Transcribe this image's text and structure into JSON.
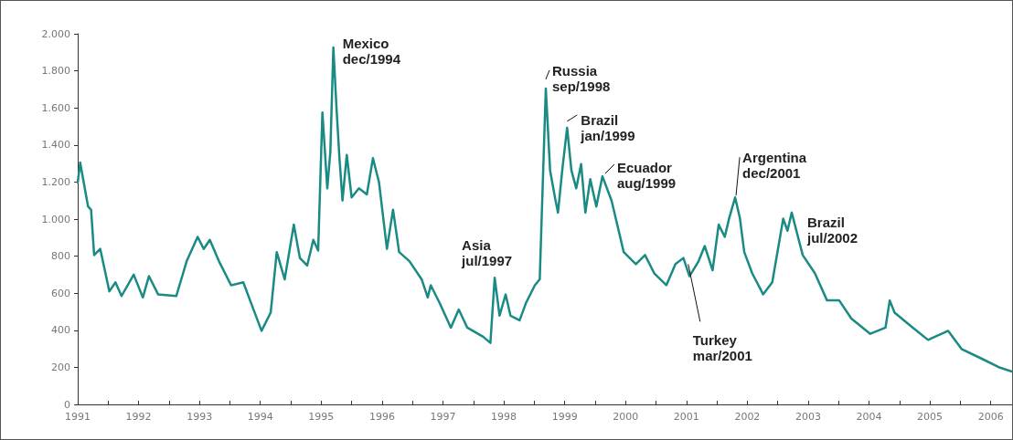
{
  "chart_data": {
    "type": "line",
    "x": [
      1991.0,
      1991.04,
      1991.17,
      1991.22,
      1991.27,
      1991.37,
      1991.52,
      1991.62,
      1991.72,
      1991.92,
      1992.07,
      1992.17,
      1992.32,
      1992.62,
      1992.79,
      1992.97,
      1993.07,
      1993.17,
      1993.32,
      1993.52,
      1993.72,
      1993.87,
      1994.02,
      1994.17,
      1994.27,
      1994.4,
      1994.55,
      1994.65,
      1994.77,
      1994.87,
      1994.95,
      1995.02,
      1995.1,
      1995.15,
      1995.2,
      1995.25,
      1995.3,
      1995.35,
      1995.42,
      1995.5,
      1995.62,
      1995.75,
      1995.85,
      1995.95,
      1996.08,
      1996.18,
      1996.28,
      1996.45,
      1996.65,
      1996.75,
      1996.8,
      1996.95,
      1997.13,
      1997.26,
      1997.4,
      1997.66,
      1997.78,
      1997.85,
      1997.93,
      1998.03,
      1998.11,
      1998.26,
      1998.36,
      1998.51,
      1998.59,
      1998.69,
      1998.76,
      1998.84,
      1998.89,
      1998.96,
      1999.04,
      1999.11,
      1999.19,
      1999.27,
      1999.34,
      1999.42,
      1999.52,
      1999.62,
      1999.77,
      1999.97,
      2000.17,
      2000.32,
      2000.47,
      2000.67,
      2000.82,
      2000.95,
      2001.05,
      2001.2,
      2001.3,
      2001.43,
      2001.53,
      2001.63,
      2001.7,
      2001.8,
      2001.88,
      2001.95,
      2002.08,
      2002.26,
      2002.41,
      2002.59,
      2002.66,
      2002.73,
      2002.91,
      2003.11,
      2003.31,
      2003.51,
      2003.71,
      2004.02,
      2004.27,
      2004.34,
      2004.42,
      2004.72,
      2004.97,
      2005.3,
      2005.52,
      2005.83,
      2006.13,
      2006.35
    ],
    "series": [
      {
        "color": "#1a8a84",
        "values": [
          1198,
          1305,
          1068,
          1050,
          806,
          839,
          610,
          659,
          585,
          700,
          577,
          692,
          594,
          585,
          773,
          904,
          839,
          888,
          773,
          643,
          659,
          528,
          397,
          495,
          822,
          675,
          970,
          790,
          749,
          888,
          830,
          1575,
          1166,
          1362,
          1926,
          1607,
          1329,
          1100,
          1346,
          1117,
          1166,
          1133,
          1329,
          1198,
          839,
          1051,
          822,
          773,
          675,
          577,
          643,
          544,
          414,
          512,
          414,
          365,
          332,
          683,
          479,
          593,
          479,
          454,
          544,
          643,
          675,
          1705,
          1264,
          1117,
          1035,
          1264,
          1493,
          1264,
          1166,
          1297,
          1035,
          1215,
          1068,
          1231,
          1100,
          822,
          757,
          806,
          708,
          643,
          757,
          790,
          692,
          773,
          855,
          724,
          970,
          904,
          1002,
          1117,
          1002,
          822,
          708,
          594,
          659,
          1002,
          937,
          1035,
          806,
          708,
          561,
          561,
          463,
          381,
          414,
          561,
          495,
          414,
          348,
          397,
          299,
          250,
          201,
          177
        ]
      }
    ],
    "xlim": [
      1991,
      2006.35
    ],
    "xticks": [
      1991,
      {
        "value": 1991.5,
        "label": null
      },
      1992,
      {
        "value": 1992.5,
        "label": null
      },
      1993,
      {
        "value": 1993.5,
        "label": null
      },
      1994,
      {
        "value": 1994.5,
        "label": null
      },
      1995,
      {
        "value": 1995.5,
        "label": null
      },
      1996,
      {
        "value": 1996.5,
        "label": null
      },
      1997,
      {
        "value": 1997.5,
        "label": null
      },
      1998,
      {
        "value": 1998.5,
        "label": null
      },
      1999,
      {
        "value": 1999.5,
        "label": null
      },
      2000,
      {
        "value": 2000.5,
        "label": null
      },
      2001,
      {
        "value": 2001.5,
        "label": null
      },
      2002,
      {
        "value": 2002.5,
        "label": null
      },
      2003,
      {
        "value": 2003.5,
        "label": null
      },
      2004,
      {
        "value": 2004.5,
        "label": null
      },
      2005,
      {
        "value": 2005.5,
        "label": null
      },
      2006
    ],
    "ylim": [
      0,
      2000
    ],
    "yticks": [
      0,
      200,
      400,
      600,
      800,
      {
        "value": 1000,
        "label": "1.000"
      },
      {
        "value": 1200,
        "label": "1.200"
      },
      {
        "value": 1400,
        "label": "1.400"
      },
      {
        "value": 1600,
        "label": "1.600"
      },
      {
        "value": 1800,
        "label": "1.800"
      },
      {
        "value": 2000,
        "label": "2.000"
      }
    ],
    "annotations": [
      {
        "text": "Mexico\ndec/1994",
        "x": 1995.2,
        "y": 1926
      },
      {
        "text": "Asia\njul/1997",
        "x": 1997.85,
        "y": 683
      },
      {
        "text": "Russia\nsep/1998",
        "x": 1998.69,
        "y": 1705
      },
      {
        "text": "Brazil\njan/1999",
        "x": 1999.04,
        "y": 1493
      },
      {
        "text": "Ecuador\naug/1999",
        "x": 1999.62,
        "y": 1231
      },
      {
        "text": "Turkey\nmar/2001",
        "x": 2001.03,
        "y": 757
      },
      {
        "text": "Argentina\ndec/2001",
        "x": 2001.8,
        "y": 1117
      },
      {
        "text": "Brazil\njul/2002",
        "x": 2002.73,
        "y": 1035
      }
    ],
    "grid": false,
    "marker": "none",
    "line_style": "solid"
  }
}
